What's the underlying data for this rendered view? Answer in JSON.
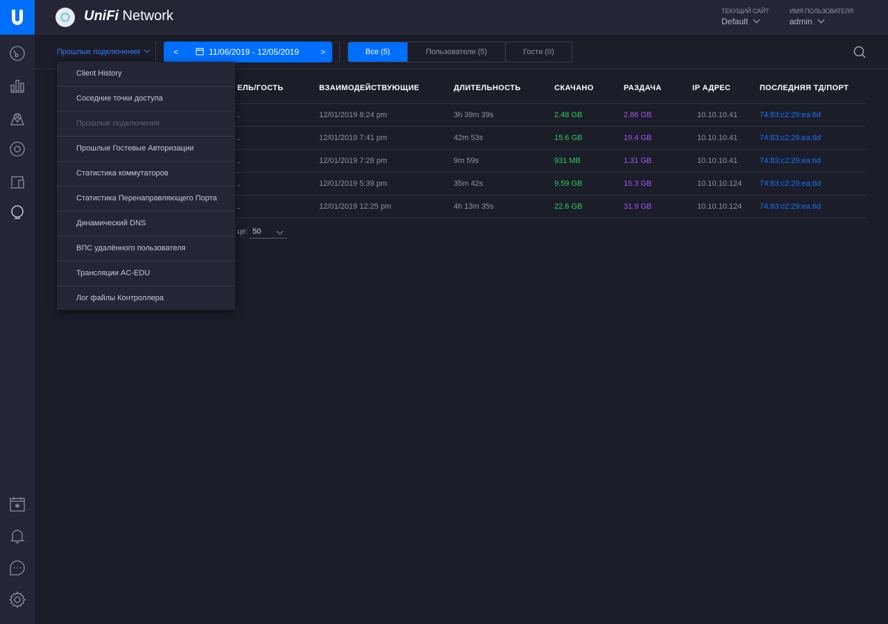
{
  "app": {
    "brand_bold": "UniFi",
    "brand_rest": " Network"
  },
  "header": {
    "site_label": "ТЕКУЩИЙ САЙТ",
    "site_value": "Default",
    "user_label": "ИМЯ ПОЛЬЗОВАТЕЛЯ",
    "user_value": "admin"
  },
  "sidebar": {
    "items": [
      "dashboard",
      "statistics",
      "map",
      "devices",
      "clients",
      "insights"
    ],
    "bottom": [
      "events",
      "alerts",
      "chat",
      "settings"
    ]
  },
  "toolbar": {
    "history_select": "Прошлые подключения",
    "prev": "<",
    "next": ">",
    "date_range": "11/06/2019 - 12/05/2019",
    "filters": [
      {
        "label": "Все (5)",
        "active": true
      },
      {
        "label": "Пользователи (5)",
        "active": false
      },
      {
        "label": "Гости (0)",
        "active": false
      }
    ]
  },
  "table": {
    "headers": [
      "ЕЛЬ/ГОСТЬ",
      "ВЗАИМОДЕЙСТВУЮЩИЕ",
      "ДЛИТЕЛЬНОСТЬ",
      "СКАЧАНО",
      "РАЗДАЧА",
      "IP АДРЕС",
      "ПОСЛЕДНЯЯ ТД/ПОРТ"
    ],
    "rows": [
      {
        "time": "12/01/2019 8:24 pm",
        "duration": "3h 39m 39s",
        "down": "2.48 GB",
        "up": "2.86 GB",
        "ip": "10.10.10.41",
        "ap": "74:83:c2:29:ea:6d"
      },
      {
        "time": "12/01/2019 7:41 pm",
        "duration": "42m 53s",
        "down": "15.6 GB",
        "up": "19.4 GB",
        "ip": "10.10.10.41",
        "ap": "74:83:c2:29:ea:6d"
      },
      {
        "time": "12/01/2019 7:28 pm",
        "duration": "9m 59s",
        "down": "931 MB",
        "up": "1.31 GB",
        "ip": "10.10.10.41",
        "ap": "74:83:c2:29:ea:6d"
      },
      {
        "time": "12/01/2019 5:39 pm",
        "duration": "35m 42s",
        "down": "9.59 GB",
        "up": "15.3 GB",
        "ip": "10.10.10.124",
        "ap": "74:83:c2:29:ea:6d"
      },
      {
        "time": "12/01/2019 12:25 pm",
        "duration": "4h 13m 35s",
        "down": "22.6 GB",
        "up": "31.9 GB",
        "ip": "10.10.10.124",
        "ap": "74:83:c2:29:ea:6d"
      }
    ]
  },
  "pager": {
    "label": "це:",
    "per_page": "50"
  },
  "dropdown": {
    "items": [
      {
        "label": "Client History",
        "disabled": false
      },
      {
        "label": "Соседние точки доступа",
        "disabled": false
      },
      {
        "label": "Прошлые подключения",
        "disabled": true
      },
      {
        "label": "Прошлые Гостевые Авторизации",
        "disabled": false
      },
      {
        "label": "Статистика коммутаторов",
        "disabled": false
      },
      {
        "label": "Статистика Перенаправляющего Порта",
        "disabled": false
      },
      {
        "label": "Динамический DNS",
        "disabled": false
      },
      {
        "label": "ВПС удалённого пользователя",
        "disabled": false
      },
      {
        "label": "Трансляции AC-EDU",
        "disabled": false
      },
      {
        "label": "Лог файлы Контроллера",
        "disabled": false
      }
    ]
  },
  "colors": {
    "accent": "#006fff",
    "download": "#2fcf5a",
    "upload": "#a855f7",
    "link": "#1a73ff"
  }
}
